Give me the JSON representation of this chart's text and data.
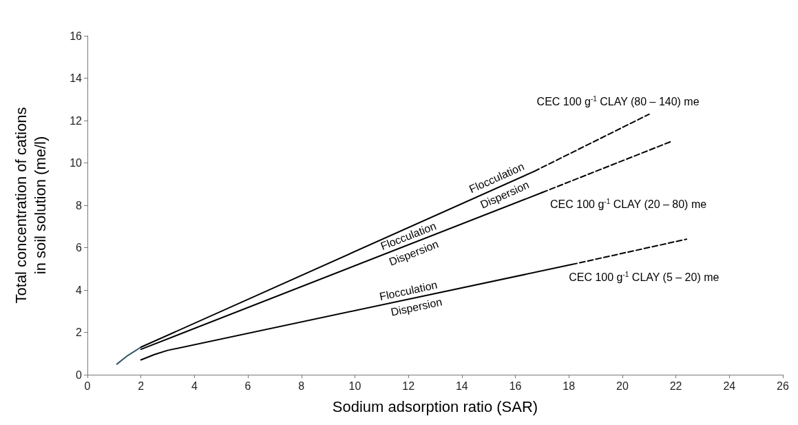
{
  "chart_data": {
    "type": "line",
    "xlabel": "Sodium adsorption ratio (SAR)",
    "ylabel": "Total concentration of cations\nin soil solution (me/l)",
    "xlim": [
      0,
      26
    ],
    "xticks": [
      0,
      2,
      4,
      6,
      8,
      10,
      12,
      14,
      16,
      18,
      20,
      22,
      24,
      26
    ],
    "ylim": [
      0,
      16
    ],
    "yticks": [
      0,
      2,
      4,
      6,
      8,
      10,
      12,
      14,
      16
    ],
    "grid": false,
    "marker": "none",
    "line_style": "solid",
    "series": [
      {
        "color": "#31566b",
        "x": [
          1.1,
          1.5,
          2
        ],
        "values": [
          0.5,
          0.9,
          1.3
        ]
      },
      {
        "color": "#000000",
        "x": [
          2,
          16.7
        ],
        "values": [
          1.3,
          9.6
        ]
      },
      {
        "color": "#000000",
        "x": [
          16.7,
          21
        ],
        "values": [
          9.6,
          12.3
        ],
        "line_style": "dashed"
      },
      {
        "color": "#000000",
        "x": [
          2,
          17
        ],
        "values": [
          1.2,
          8.6
        ]
      },
      {
        "color": "#000000",
        "x": [
          17,
          21.8
        ],
        "values": [
          8.6,
          11.0
        ],
        "line_style": "dashed"
      },
      {
        "color": "#000000",
        "x": [
          2,
          2.5,
          3,
          18.1
        ],
        "values": [
          0.7,
          0.95,
          1.15,
          5.2
        ]
      },
      {
        "color": "#000000",
        "x": [
          18.1,
          22.4
        ],
        "values": [
          5.2,
          6.4
        ],
        "line_style": "dashed"
      }
    ],
    "annotations": [
      "Flocculation",
      "Dispersion",
      "Flocculation",
      "Dispersion",
      "Flocculation",
      "Dispersion",
      "CEC 100 g$^{-1}$ CLAY (80 – 140) me",
      "CEC 100 g$^{-1}$ CLAY (20 – 80) me",
      "CEC 100 g$^{-1}$ CLAY (5 – 20) me"
    ]
  }
}
